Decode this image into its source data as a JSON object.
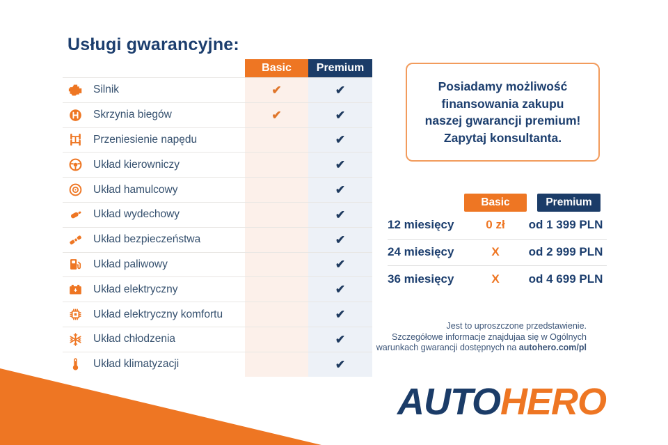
{
  "title": "Usługi gwarancyjne:",
  "colors": {
    "accent_orange": "#EE7623",
    "brand_navy": "#1B3C68",
    "basic_column_bg": "#FCF0EA",
    "premium_column_bg": "#EDF1F7"
  },
  "warranty_table": {
    "columns": [
      "Basic",
      "Premium"
    ],
    "check_glyph": "✔",
    "rows": [
      {
        "label": "Silnik",
        "icon": "engine-icon",
        "basic": true,
        "premium": true
      },
      {
        "label": "Skrzynia biegów",
        "icon": "gearbox-icon",
        "basic": true,
        "premium": true
      },
      {
        "label": "Przeniesienie napędu",
        "icon": "drivetrain-icon",
        "basic": false,
        "premium": true
      },
      {
        "label": "Układ kierowniczy",
        "icon": "steering-wheel-icon",
        "basic": false,
        "premium": true
      },
      {
        "label": "Układ hamulcowy",
        "icon": "brake-disc-icon",
        "basic": false,
        "premium": true
      },
      {
        "label": "Układ wydechowy",
        "icon": "exhaust-icon",
        "basic": false,
        "premium": true
      },
      {
        "label": "Układ bezpieczeństwa",
        "icon": "seatbelt-icon",
        "basic": false,
        "premium": true
      },
      {
        "label": "Układ paliwowy",
        "icon": "fuel-pump-icon",
        "basic": false,
        "premium": true
      },
      {
        "label": "Układ elektryczny",
        "icon": "battery-icon",
        "basic": false,
        "premium": true
      },
      {
        "label": "Układ elektryczny komfortu",
        "icon": "chip-icon",
        "basic": false,
        "premium": true
      },
      {
        "label": "Układ chłodzenia",
        "icon": "snowflake-icon",
        "basic": false,
        "premium": true
      },
      {
        "label": "Układ klimatyzacji",
        "icon": "thermometer-icon",
        "basic": false,
        "premium": true
      }
    ]
  },
  "promo_box": {
    "lines": [
      "Posiadamy możliwość",
      "finansowania zakupu",
      "naszej gwarancji premium!",
      "Zapytaj konsultanta."
    ]
  },
  "pricing_table": {
    "columns": [
      "Basic",
      "Premium"
    ],
    "rows": [
      {
        "period": "12 miesięcy",
        "basic": "0 zł",
        "premium": "od 1 399 PLN"
      },
      {
        "period": "24 miesięcy",
        "basic": "X",
        "premium": "od 2 999 PLN"
      },
      {
        "period": "36 miesięcy",
        "basic": "X",
        "premium": "od 4 699 PLN"
      }
    ]
  },
  "disclaimer": {
    "line1": "Jest to uproszczone przedstawienie.",
    "line2": "Szczegółowe informacje znajdujaa się w Ogólnych",
    "line3_prefix": "warunkach gwarancji dostępnych na ",
    "line3_link": "autohero.com/pl"
  },
  "logo": {
    "part1": "AUTO",
    "part2": "HERO"
  }
}
